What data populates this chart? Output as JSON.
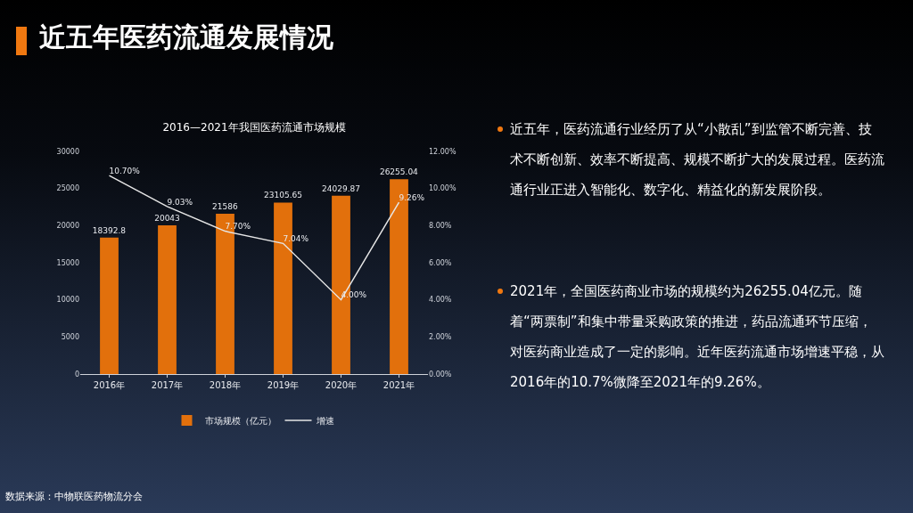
{
  "chart_data": {
    "type": "bar",
    "title": "近五年医药流通发展情况",
    "subtitle": "2016—2021年我国医药流通市场规模",
    "categories": [
      "2016年",
      "2017年",
      "2018年",
      "2019年",
      "2020年",
      "2021年"
    ],
    "series": [
      {
        "name": "市场规模（亿元）",
        "color": "#e2700c",
        "values": [
          18392.8,
          20043,
          21586,
          23105.65,
          24029.87,
          26255.04
        ],
        "value_labels": [
          "18392.8",
          "20043",
          "21586",
          "23105.65",
          "24029.87",
          "26255.04"
        ]
      },
      {
        "name": "增速",
        "type": "line",
        "axis": "y2",
        "color": "#e6e6e6",
        "values": [
          10.7,
          9.03,
          7.7,
          7.04,
          4.0,
          9.26
        ],
        "value_labels": [
          "10.70%",
          "9.03%",
          "7.70%",
          "7.04%",
          "4.00%",
          "9.26%"
        ]
      }
    ],
    "ylim": [
      0,
      30000
    ],
    "yticks": [
      0,
      5000,
      10000,
      15000,
      20000,
      25000,
      30000
    ],
    "y2lim": [
      0,
      12
    ],
    "y2ticks": [
      {
        "value": 0,
        "label": "0.00%"
      },
      {
        "value": 2,
        "label": "2.00%"
      },
      {
        "value": 4,
        "label": "4.00%"
      },
      {
        "value": 6,
        "label": "6.00%"
      },
      {
        "value": 8,
        "label": "8.00%"
      },
      {
        "value": 10,
        "label": "10.00%"
      },
      {
        "value": 12,
        "label": "12.00%"
      }
    ],
    "grid": false,
    "legend": "bottom",
    "marker": "none",
    "line_style": "solid",
    "annotations": [
      "近五年，医药流通行业经历了从“小散乱”到监管不断完善、技术不断创新、效率不断提高、规模不断扩大的发展过程。医药流通行业正进入智能化、数字化、精益化的新发展阶段。",
      "2021年，全国医药商业市场的规模约为26255.04亿元。随着“两票制”和集中带量采购政策的推进，药品流通环节压缩，对医药商业造成了一定的影响。近年医药流通市场增速平稳，从2016年的10.7%微降至2021年的9.26%。",
      "数据来源：中物联医药物流分会"
    ]
  }
}
